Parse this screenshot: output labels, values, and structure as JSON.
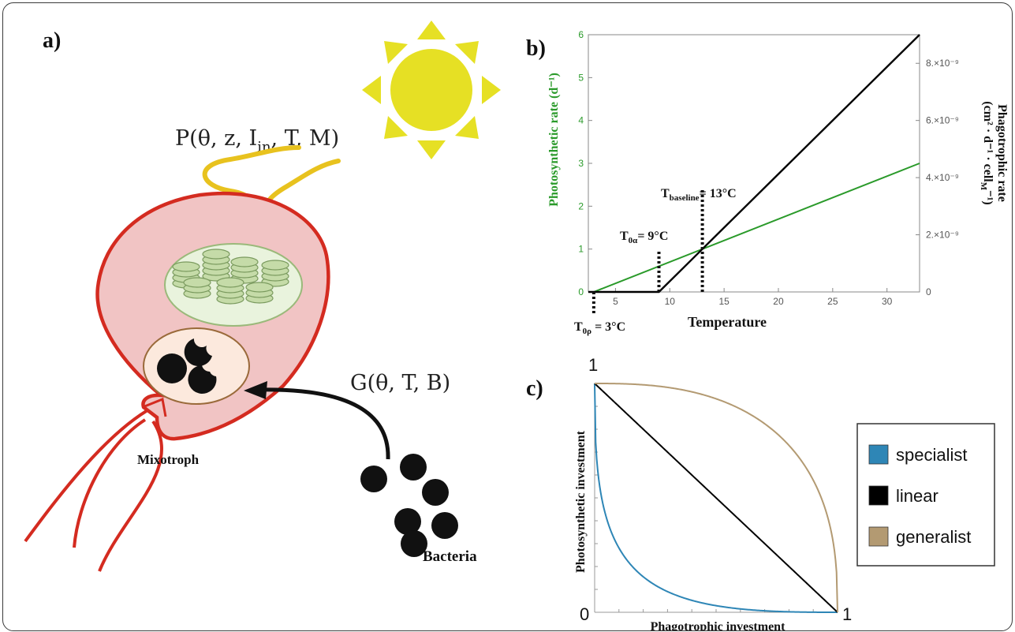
{
  "panel_a": {
    "label": "a)",
    "photo_formula": "P(θ, z, I",
    "photo_formula_sub": "in",
    "photo_formula_end": ", T, M)",
    "graz_formula": "G(θ, T, B)",
    "mixotroph_label": "Mixotroph",
    "bacteria_label": "Bacteria",
    "colors": {
      "cell_fill": "#f1c4c4",
      "cell_stroke": "#d42b20",
      "sun": "#e6e024",
      "light": "#e8c21e",
      "chloroplast": "#c5dba8"
    }
  },
  "panel_b": {
    "label": "b)",
    "xlabel": "Temperature",
    "ylabel_left": "Photosynthetic rate (d⁻¹)",
    "ylabel_right_line1": "Phagotrophic rate",
    "ylabel_right_line2": "(cm² · d⁻¹ · cell",
    "ylabel_right_sub": "M",
    "ylabel_right_end": "⁻¹)",
    "annot_t0p": "T",
    "annot_t0p_sub": "0ρ",
    "annot_t0p_end": " = 3°C",
    "annot_t0a": "T",
    "annot_t0a_sub": "0α",
    "annot_t0a_end": "= 9°C",
    "annot_tbase": "T",
    "annot_tbase_sub": "baseline",
    "annot_tbase_end": "= 13°C",
    "right_ticks": [
      "0",
      "2.×10⁻⁹",
      "4.×10⁻⁹",
      "6.×10⁻⁹",
      "8.×10⁻⁹"
    ]
  },
  "panel_c": {
    "label": "c)",
    "xlabel": "Phagotrophic investment",
    "ylabel": "Photosynthetic investment",
    "top_left": "1",
    "bottom_left": "0",
    "bottom_right": "1",
    "legend": [
      {
        "label": "specialist",
        "color": "#2e86b6"
      },
      {
        "label": "linear",
        "color": "#000000"
      },
      {
        "label": "generalist",
        "color": "#b39a72"
      }
    ]
  },
  "chart_data": [
    {
      "type": "line",
      "panel": "b",
      "xlabel": "Temperature",
      "ylabel": "Photosynthetic rate (d⁻¹)",
      "ylabel_right": "Phagotrophic rate (cm² · d⁻¹ · cell_M⁻¹)",
      "xlim": [
        2.5,
        33
      ],
      "ylim": [
        0,
        6
      ],
      "ylim_right": [
        0,
        9e-09
      ],
      "xticks": [
        5,
        10,
        15,
        20,
        25,
        30
      ],
      "yticks": [
        0,
        1,
        2,
        3,
        4,
        5,
        6
      ],
      "series": [
        {
          "color": "#2a9a2a",
          "axis": "left",
          "x": [
            3,
            33
          ],
          "y": [
            0,
            3
          ]
        },
        {
          "color": "#000000",
          "axis": "right",
          "x": [
            2.5,
            9,
            33
          ],
          "y": [
            0,
            0,
            9e-09
          ]
        }
      ],
      "markers": [
        {
          "x": 3,
          "y_top": 0
        },
        {
          "x": 9,
          "y_top": 0.95
        },
        {
          "x": 13,
          "y_top": 2.4
        }
      ]
    },
    {
      "type": "line",
      "panel": "c",
      "xlabel": "Phagotrophic investment",
      "ylabel": "Photosynthetic investment",
      "xlim": [
        0,
        1
      ],
      "ylim": [
        0,
        1
      ],
      "series": [
        {
          "name": "specialist",
          "color": "#2e86b6",
          "exponent": 0.4
        },
        {
          "name": "linear",
          "color": "#000000",
          "exponent": 1
        },
        {
          "name": "generalist",
          "color": "#b39a72",
          "exponent": 2.6
        }
      ]
    }
  ]
}
